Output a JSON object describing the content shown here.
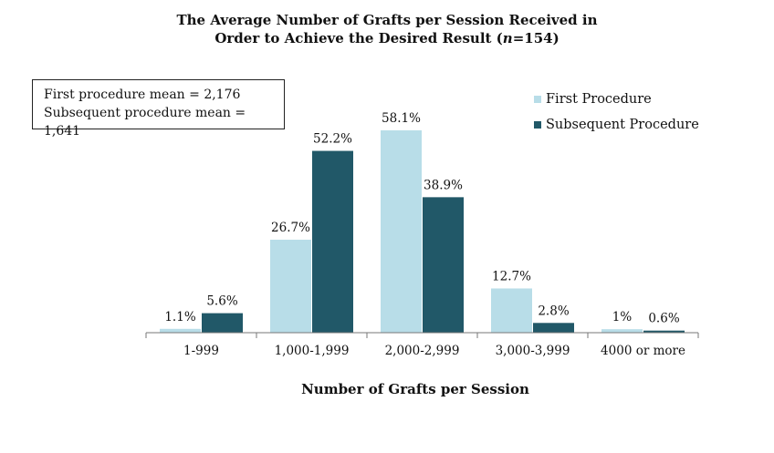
{
  "chart_data": {
    "type": "bar",
    "title_line1": "The Average Number of Grafts per Session Received in",
    "title_line2_prefix": "Order to Achieve the Desired Result (",
    "title_line2_italic": "n",
    "title_line2_suffix": "=154)",
    "xlabel": "Number of Grafts per Session",
    "ylabel": "",
    "categories": [
      "1-999",
      "1,000-1,999",
      "2,000-2,999",
      "3,000-3,999",
      "4000 or more"
    ],
    "series": [
      {
        "name": "First Procedure",
        "color": "#b8dde8",
        "values": [
          1.1,
          26.7,
          58.1,
          12.7,
          1.0
        ],
        "labels": [
          "1.1%",
          "26.7%",
          "58.1%",
          "12.7%",
          "1%"
        ]
      },
      {
        "name": "Subsequent Procedure",
        "color": "#215868",
        "values": [
          5.6,
          52.2,
          38.9,
          2.8,
          0.6
        ],
        "labels": [
          "5.6%",
          "52.2%",
          "38.9%",
          "2.8%",
          "0.6%"
        ]
      }
    ],
    "ylim": [
      0,
      60
    ],
    "grid": false,
    "legend_position": "top-right",
    "annotation": {
      "line1": "First procedure mean = 2,176",
      "line2": "Subsequent procedure mean = 1,641"
    }
  }
}
